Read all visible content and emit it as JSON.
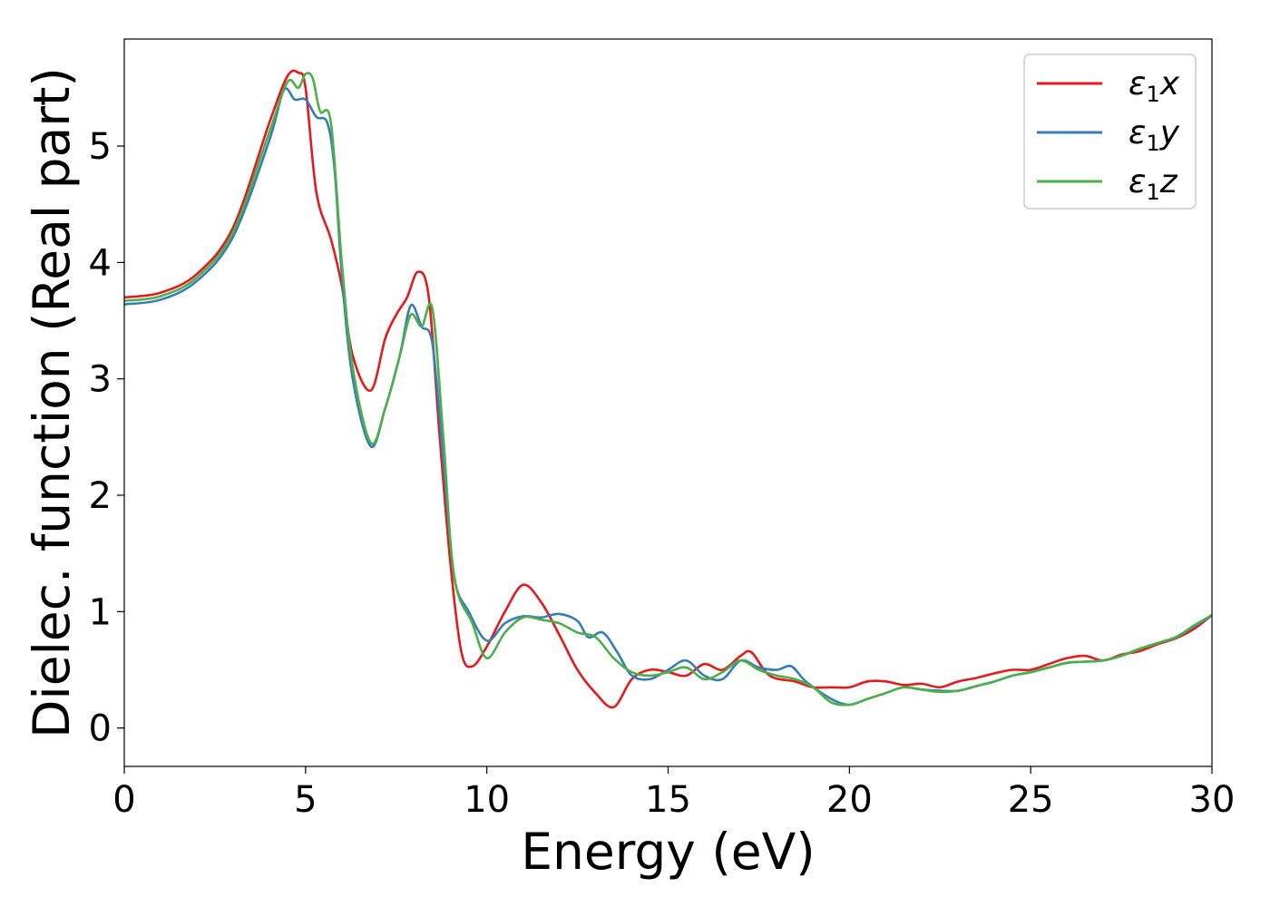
{
  "chart_data": {
    "type": "line",
    "xlabel": "Energy (eV)",
    "ylabel": "Dielec. function (Real part)",
    "xlim": [
      0,
      30
    ],
    "ylim": [
      -0.33,
      5.92
    ],
    "xticks": [
      0,
      5,
      10,
      15,
      20,
      25,
      30
    ],
    "yticks": [
      0,
      1,
      2,
      3,
      4,
      5
    ],
    "grid": false,
    "legend_position": "top-right",
    "series": [
      {
        "name": "ε₁x",
        "label_base": "ε",
        "label_sub": "1",
        "label_var": "x",
        "color": "#e41a1c",
        "points": [
          [
            0,
            3.7
          ],
          [
            1,
            3.74
          ],
          [
            2,
            3.9
          ],
          [
            3,
            4.3
          ],
          [
            4,
            5.2
          ],
          [
            4.5,
            5.6
          ],
          [
            4.8,
            5.63
          ],
          [
            5.0,
            5.5
          ],
          [
            5.3,
            4.6
          ],
          [
            5.7,
            4.2
          ],
          [
            6.0,
            3.8
          ],
          [
            6.3,
            3.2
          ],
          [
            6.8,
            2.9
          ],
          [
            7.2,
            3.35
          ],
          [
            7.5,
            3.55
          ],
          [
            7.8,
            3.7
          ],
          [
            8.1,
            3.92
          ],
          [
            8.4,
            3.7
          ],
          [
            8.7,
            2.5
          ],
          [
            9.0,
            1.4
          ],
          [
            9.3,
            0.65
          ],
          [
            9.6,
            0.53
          ],
          [
            10.0,
            0.7
          ],
          [
            10.5,
            1.0
          ],
          [
            11.0,
            1.23
          ],
          [
            11.5,
            1.08
          ],
          [
            12.0,
            0.8
          ],
          [
            12.5,
            0.5
          ],
          [
            13.0,
            0.3
          ],
          [
            13.5,
            0.18
          ],
          [
            14.0,
            0.42
          ],
          [
            14.5,
            0.5
          ],
          [
            15.0,
            0.48
          ],
          [
            15.5,
            0.45
          ],
          [
            16.0,
            0.55
          ],
          [
            16.5,
            0.5
          ],
          [
            17.0,
            0.62
          ],
          [
            17.3,
            0.65
          ],
          [
            17.8,
            0.45
          ],
          [
            18.5,
            0.4
          ],
          [
            19.0,
            0.35
          ],
          [
            19.5,
            0.35
          ],
          [
            20.0,
            0.35
          ],
          [
            20.5,
            0.4
          ],
          [
            21.0,
            0.4
          ],
          [
            21.5,
            0.37
          ],
          [
            22.0,
            0.38
          ],
          [
            22.5,
            0.35
          ],
          [
            23.0,
            0.4
          ],
          [
            23.5,
            0.43
          ],
          [
            24.0,
            0.47
          ],
          [
            24.5,
            0.5
          ],
          [
            25.0,
            0.5
          ],
          [
            25.5,
            0.55
          ],
          [
            26.0,
            0.6
          ],
          [
            26.5,
            0.62
          ],
          [
            27.0,
            0.58
          ],
          [
            27.5,
            0.63
          ],
          [
            28.0,
            0.66
          ],
          [
            28.5,
            0.72
          ],
          [
            29.0,
            0.77
          ],
          [
            29.5,
            0.85
          ],
          [
            30.0,
            0.97
          ]
        ]
      },
      {
        "name": "ε₁y",
        "label_base": "ε",
        "label_sub": "1",
        "label_var": "y",
        "color": "#377eb8",
        "points": [
          [
            0,
            3.64
          ],
          [
            1,
            3.68
          ],
          [
            2,
            3.84
          ],
          [
            3,
            4.22
          ],
          [
            4,
            5.05
          ],
          [
            4.4,
            5.48
          ],
          [
            4.7,
            5.4
          ],
          [
            5.0,
            5.4
          ],
          [
            5.3,
            5.25
          ],
          [
            5.6,
            5.2
          ],
          [
            5.8,
            4.8
          ],
          [
            6.0,
            3.9
          ],
          [
            6.3,
            3.0
          ],
          [
            6.8,
            2.42
          ],
          [
            7.2,
            2.75
          ],
          [
            7.6,
            3.2
          ],
          [
            7.9,
            3.63
          ],
          [
            8.2,
            3.45
          ],
          [
            8.5,
            3.3
          ],
          [
            8.8,
            2.3
          ],
          [
            9.1,
            1.3
          ],
          [
            9.5,
            1.0
          ],
          [
            10.0,
            0.75
          ],
          [
            10.5,
            0.9
          ],
          [
            11.0,
            0.96
          ],
          [
            11.5,
            0.95
          ],
          [
            12.0,
            0.98
          ],
          [
            12.5,
            0.92
          ],
          [
            12.8,
            0.78
          ],
          [
            13.2,
            0.82
          ],
          [
            13.6,
            0.65
          ],
          [
            14.0,
            0.45
          ],
          [
            14.5,
            0.42
          ],
          [
            15.0,
            0.5
          ],
          [
            15.5,
            0.58
          ],
          [
            16.0,
            0.45
          ],
          [
            16.5,
            0.42
          ],
          [
            17.0,
            0.58
          ],
          [
            17.5,
            0.52
          ],
          [
            18.0,
            0.5
          ],
          [
            18.4,
            0.53
          ],
          [
            18.8,
            0.4
          ],
          [
            19.5,
            0.25
          ],
          [
            20.0,
            0.2
          ],
          [
            20.5,
            0.25
          ],
          [
            21.0,
            0.3
          ],
          [
            21.5,
            0.35
          ],
          [
            22.0,
            0.33
          ],
          [
            22.5,
            0.32
          ],
          [
            23.0,
            0.32
          ],
          [
            23.5,
            0.36
          ],
          [
            24.0,
            0.4
          ],
          [
            24.5,
            0.45
          ],
          [
            25.0,
            0.48
          ],
          [
            25.5,
            0.52
          ],
          [
            26.0,
            0.56
          ],
          [
            26.5,
            0.57
          ],
          [
            27.0,
            0.58
          ],
          [
            27.5,
            0.62
          ],
          [
            28.0,
            0.68
          ],
          [
            28.5,
            0.73
          ],
          [
            29.0,
            0.78
          ],
          [
            29.5,
            0.87
          ],
          [
            30.0,
            0.97
          ]
        ]
      },
      {
        "name": "ε₁z",
        "label_base": "ε",
        "label_sub": "1",
        "label_var": "z",
        "color": "#4daf4a",
        "points": [
          [
            0,
            3.67
          ],
          [
            1,
            3.71
          ],
          [
            2,
            3.87
          ],
          [
            3,
            4.26
          ],
          [
            4,
            5.12
          ],
          [
            4.5,
            5.55
          ],
          [
            4.8,
            5.5
          ],
          [
            5.0,
            5.62
          ],
          [
            5.2,
            5.58
          ],
          [
            5.4,
            5.3
          ],
          [
            5.7,
            5.2
          ],
          [
            6.0,
            4.0
          ],
          [
            6.3,
            3.1
          ],
          [
            6.8,
            2.45
          ],
          [
            7.2,
            2.75
          ],
          [
            7.6,
            3.2
          ],
          [
            7.9,
            3.55
          ],
          [
            8.2,
            3.45
          ],
          [
            8.5,
            3.6
          ],
          [
            8.8,
            2.5
          ],
          [
            9.1,
            1.3
          ],
          [
            9.6,
            0.9
          ],
          [
            10.0,
            0.6
          ],
          [
            10.5,
            0.82
          ],
          [
            11.0,
            0.95
          ],
          [
            11.5,
            0.93
          ],
          [
            12.0,
            0.9
          ],
          [
            12.5,
            0.82
          ],
          [
            13.0,
            0.78
          ],
          [
            13.5,
            0.6
          ],
          [
            14.0,
            0.48
          ],
          [
            14.5,
            0.45
          ],
          [
            15.0,
            0.48
          ],
          [
            15.5,
            0.52
          ],
          [
            16.0,
            0.42
          ],
          [
            16.5,
            0.48
          ],
          [
            17.0,
            0.58
          ],
          [
            17.5,
            0.5
          ],
          [
            18.0,
            0.45
          ],
          [
            18.5,
            0.42
          ],
          [
            19.0,
            0.35
          ],
          [
            19.5,
            0.22
          ],
          [
            20.0,
            0.2
          ],
          [
            20.5,
            0.25
          ],
          [
            21.0,
            0.3
          ],
          [
            21.5,
            0.35
          ],
          [
            22.0,
            0.33
          ],
          [
            22.5,
            0.31
          ],
          [
            23.0,
            0.32
          ],
          [
            23.5,
            0.36
          ],
          [
            24.0,
            0.4
          ],
          [
            24.5,
            0.45
          ],
          [
            25.0,
            0.48
          ],
          [
            25.5,
            0.52
          ],
          [
            26.0,
            0.56
          ],
          [
            26.5,
            0.57
          ],
          [
            27.0,
            0.58
          ],
          [
            27.5,
            0.62
          ],
          [
            28.0,
            0.68
          ],
          [
            28.5,
            0.73
          ],
          [
            29.0,
            0.78
          ],
          [
            29.5,
            0.88
          ],
          [
            30.0,
            0.97
          ]
        ]
      }
    ]
  }
}
